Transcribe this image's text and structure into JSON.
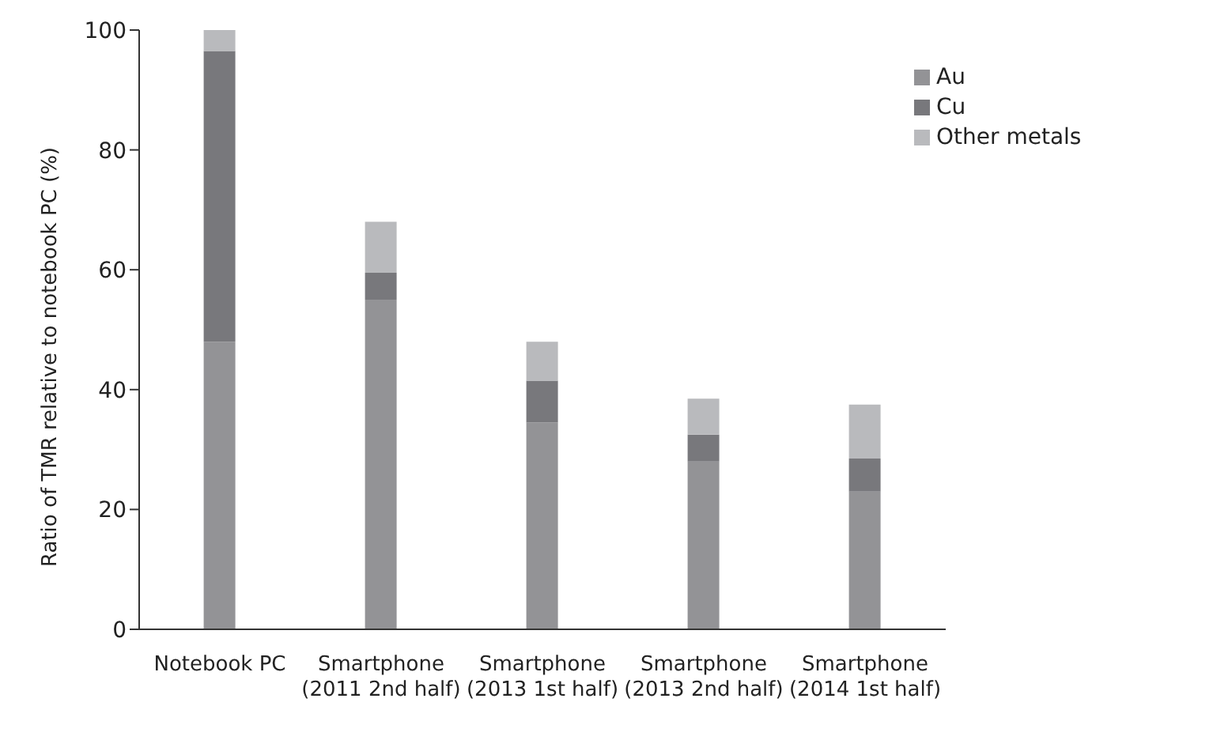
{
  "chart_data": {
    "type": "bar",
    "stacked": true,
    "ylabel": "Ratio of TMR relative to notebook PC (%)",
    "categories": [
      "Notebook PC",
      "Smartphone\n(2011 2nd half)",
      "Smartphone\n(2013 1st half)",
      "Smartphone\n(2013 2nd half)",
      "Smartphone\n(2014 1st half)"
    ],
    "series": [
      {
        "name": "Au",
        "color": "#939396",
        "values": [
          48,
          55,
          34.5,
          28,
          23
        ]
      },
      {
        "name": "Cu",
        "color": "#78787c",
        "values": [
          48.5,
          4.5,
          7,
          4.5,
          5.5
        ]
      },
      {
        "name": "Other metals",
        "color": "#b9babd",
        "values": [
          3.5,
          8.5,
          6.5,
          6,
          9
        ]
      }
    ],
    "ylim": [
      0,
      100
    ],
    "yticks": [
      0,
      20,
      40,
      60,
      80,
      100
    ],
    "grid": false,
    "legend": "top right"
  }
}
